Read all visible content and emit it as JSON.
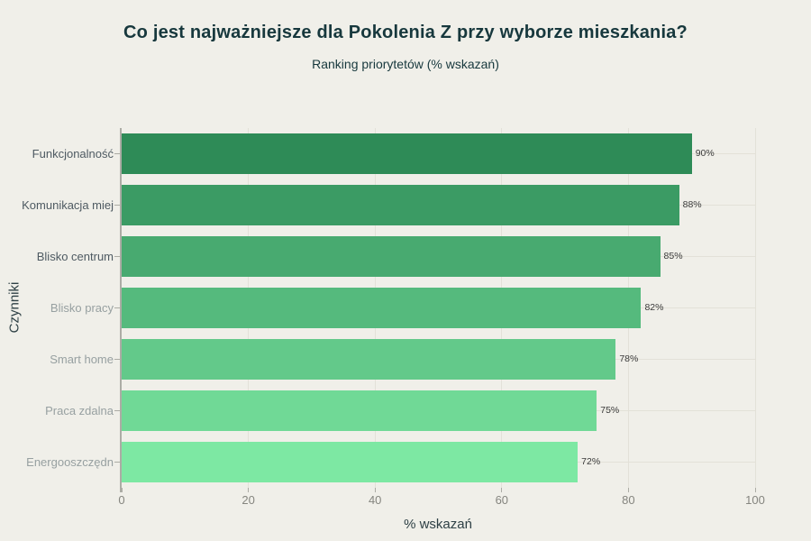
{
  "page": {
    "background_color": "#f0efe9"
  },
  "header": {
    "title": "Co jest najważniejsze dla Pokolenia Z przy wyborze mieszkania?",
    "subtitle": "Ranking priorytetów (% wskazań)"
  },
  "chart_data": {
    "type": "bar",
    "orientation": "horizontal",
    "title": "Co jest najważniejsze dla Pokolenia Z przy wyborze mieszkania?",
    "subtitle": "Ranking priorytetów (% wskazań)",
    "xlabel": "% wskazań",
    "ylabel": "Czynniki",
    "xlim": [
      0,
      100
    ],
    "x_ticks": [
      0,
      20,
      40,
      60,
      80,
      100
    ],
    "x_tick_labels": [
      "0",
      "20",
      "40",
      "60",
      "80",
      "100"
    ],
    "grid": true,
    "legend": false,
    "categories": [
      "Funkcjonalność",
      "Komunikacja miej",
      "Blisko centrum",
      "Blisko pracy",
      "Smart home",
      "Praca zdalna",
      "Energooszczędn"
    ],
    "values": [
      90,
      88,
      85,
      82,
      78,
      75,
      72
    ],
    "value_labels": [
      "90%",
      "88%",
      "85%",
      "82%",
      "78%",
      "75%",
      "72%"
    ],
    "bar_colors": [
      "#2e8b57",
      "#3b9b64",
      "#48aa70",
      "#55ba7d",
      "#63c98a",
      "#70d996",
      "#7de8a3"
    ],
    "category_label_colors": [
      "#4e5a62",
      "#4e5a62",
      "#4e5a62",
      "#97a0a1",
      "#97a0a1",
      "#97a0a1",
      "#97a0a1"
    ],
    "colors": {
      "background": "#f0efe9",
      "title_text": "#17383d",
      "axis_title_text": "#2e4045",
      "gridline": "#e3e1d8",
      "axis_line": "#acaca5",
      "tick_label_text": "#85857f",
      "value_label_text": "#3a3a3a"
    }
  }
}
